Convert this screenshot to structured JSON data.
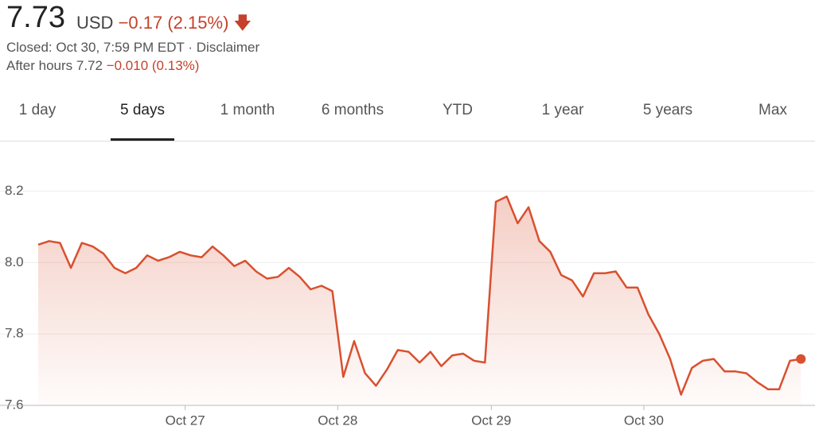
{
  "header": {
    "price": "7.73",
    "currency": "USD",
    "change": "−0.17 (2.15%)",
    "status": "Closed: Oct 30, 7:59 PM EDT",
    "separator": "·",
    "disclaimer": "Disclaimer",
    "after_hours": "After hours 7.72",
    "after_hours_change": "−0.010 (0.13%)"
  },
  "tabs": [
    "1 day",
    "5 days",
    "1 month",
    "6 months",
    "YTD",
    "1 year",
    "5 years",
    "Max"
  ],
  "active_tab": 1,
  "chart_data": {
    "type": "line",
    "color": "#d9502f",
    "area": true,
    "grid": true,
    "values": [
      8.05,
      8.06,
      8.055,
      7.985,
      8.055,
      8.045,
      8.025,
      7.985,
      7.97,
      7.985,
      8.02,
      8.005,
      8.015,
      8.03,
      8.02,
      8.015,
      8.045,
      8.02,
      7.99,
      8.005,
      7.975,
      7.955,
      7.96,
      7.985,
      7.96,
      7.925,
      7.935,
      7.92,
      7.68,
      7.78,
      7.69,
      7.655,
      7.7,
      7.755,
      7.75,
      7.72,
      7.75,
      7.71,
      7.74,
      7.745,
      7.725,
      7.72,
      8.17,
      8.185,
      8.11,
      8.155,
      8.06,
      8.03,
      7.965,
      7.95,
      7.905,
      7.97,
      7.97,
      7.975,
      7.93,
      7.93,
      7.855,
      7.8,
      7.73,
      7.63,
      7.705,
      7.725,
      7.73,
      7.695,
      7.695,
      7.69,
      7.665,
      7.645,
      7.645,
      7.725,
      7.73
    ],
    "xlim": [
      0,
      70
    ],
    "xticks": [
      {
        "value": 13.3,
        "label": "Oct 27"
      },
      {
        "value": 27.1,
        "label": "Oct 28"
      },
      {
        "value": 41,
        "label": "Oct 29"
      },
      {
        "value": 54.8,
        "label": "Oct 30"
      }
    ],
    "ylim": [
      7.6,
      8.29
    ],
    "yticks": [
      7.6,
      7.8,
      {
        "value": 8,
        "label": "8.0"
      },
      8.2
    ]
  }
}
